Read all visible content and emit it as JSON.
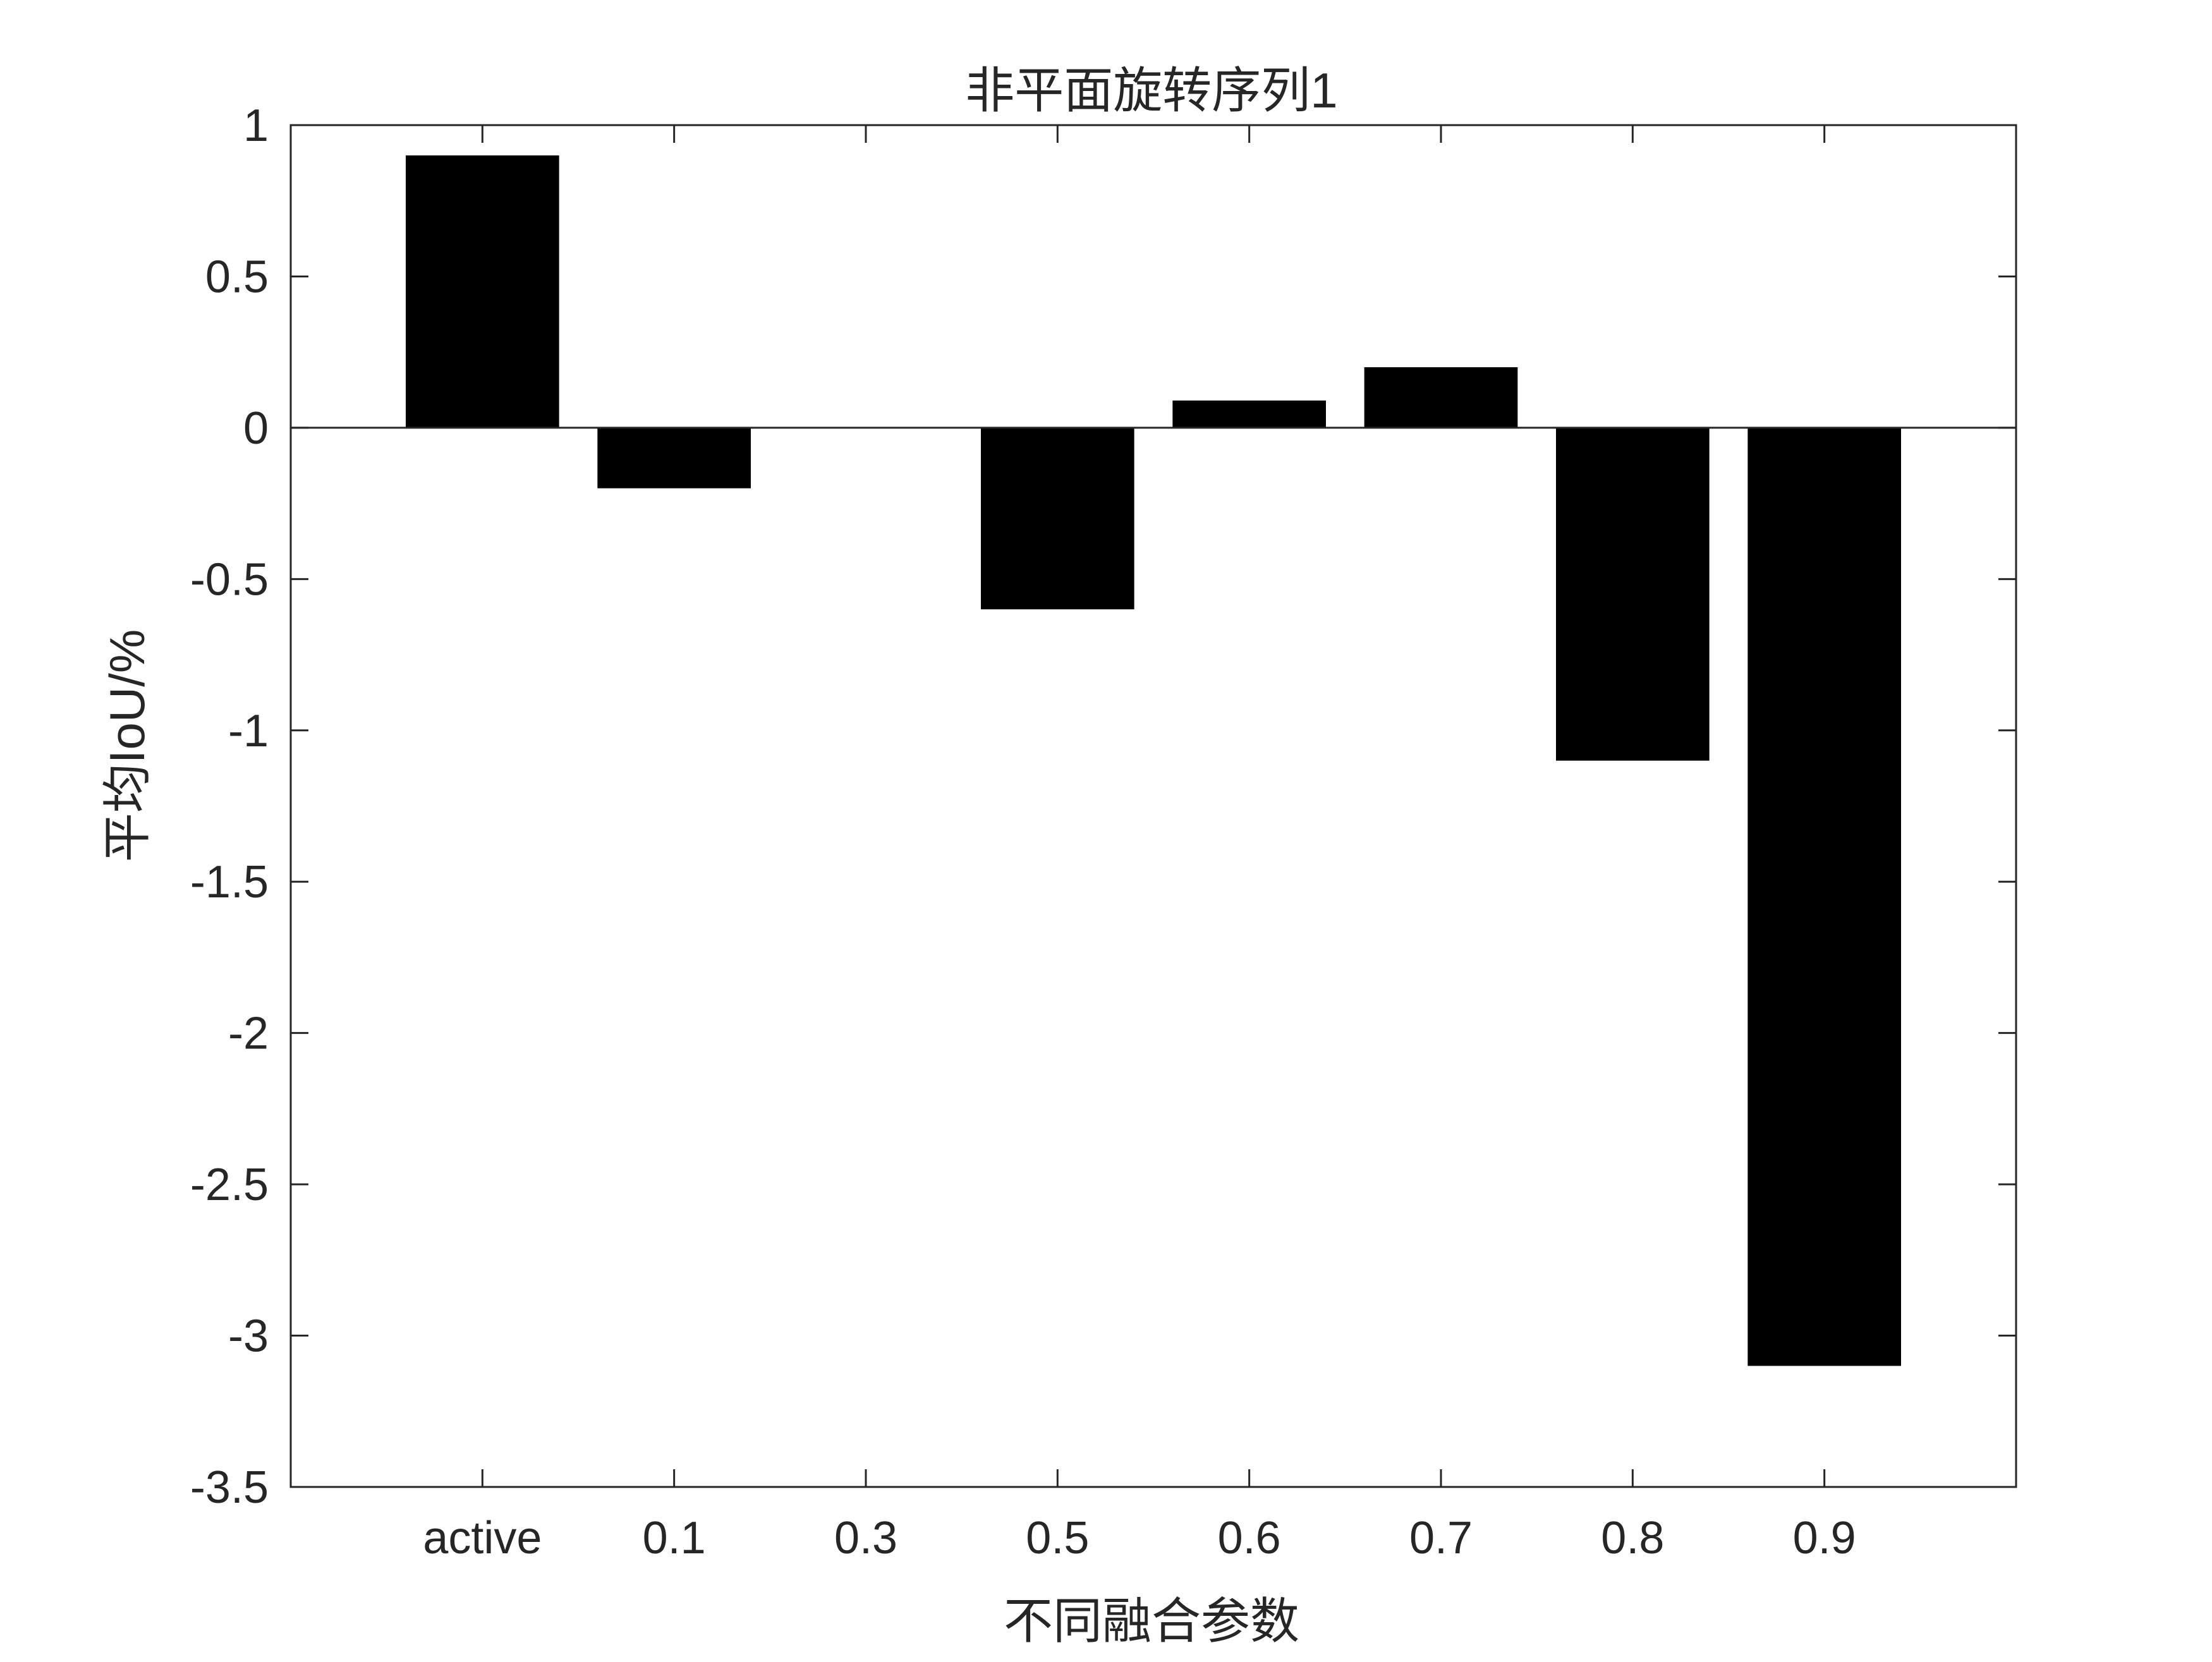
{
  "chart_data": {
    "type": "bar",
    "title": "非平面旋转序列1",
    "xlabel": "不同融合参数",
    "ylabel": "平均IoU/%",
    "categories": [
      "active",
      "0.1",
      "0.3",
      "0.5",
      "0.6",
      "0.7",
      "0.8",
      "0.9"
    ],
    "values": [
      0.9,
      -0.2,
      0.0,
      -0.6,
      0.09,
      0.2,
      -1.1,
      -3.1
    ],
    "ylim": [
      -3.5,
      1
    ],
    "yticks": [
      1,
      0.5,
      0,
      -0.5,
      -1,
      -1.5,
      -2,
      -2.5,
      -3,
      -3.5
    ],
    "ytick_labels": [
      "1",
      "0.5",
      "0",
      "-0.5",
      "-1",
      "-1.5",
      "-2",
      "-2.5",
      "-3",
      "-3.5"
    ],
    "grid": false,
    "legend": "none",
    "bar_color": "#000000",
    "axis_color": "#262626"
  }
}
